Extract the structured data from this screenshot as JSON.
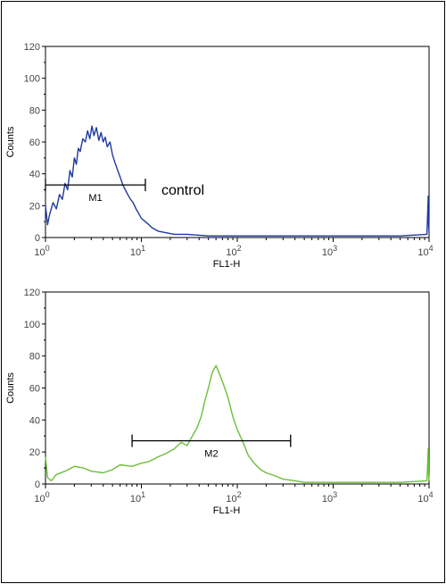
{
  "chart_data": [
    {
      "type": "line",
      "xscale": "log",
      "xlim": [
        1,
        10000
      ],
      "ylim": [
        0,
        120
      ],
      "yticks": [
        0,
        20,
        40,
        60,
        80,
        100,
        120
      ],
      "xlabel": "FL1-H",
      "ylabel": "Counts",
      "annotation": "control",
      "color": "#1e3a9e",
      "marker": {
        "label": "M1",
        "x1": 1,
        "x2": 11,
        "y": 33
      },
      "series": [
        {
          "x": [
            1,
            1.05,
            1.1,
            1.2,
            1.3,
            1.4,
            1.5,
            1.6,
            1.7,
            1.8,
            1.9,
            2.0,
            2.1,
            2.2,
            2.3,
            2.45,
            2.6,
            2.75,
            2.9,
            3.05,
            3.2,
            3.4,
            3.6,
            3.8,
            4.0,
            4.2,
            4.4,
            4.7,
            5.0,
            5.3,
            5.6,
            6.0,
            6.4,
            6.8,
            7.2,
            7.7,
            8.2,
            8.8,
            9.4,
            10,
            11,
            12,
            13,
            15,
            18,
            22,
            30,
            50,
            100,
            200,
            500,
            1000,
            2000,
            5000,
            9500,
            9800,
            9900,
            10000
          ],
          "y": [
            20,
            8,
            14,
            22,
            18,
            27,
            24,
            34,
            30,
            42,
            38,
            50,
            46,
            56,
            54,
            62,
            60,
            67,
            62,
            70,
            64,
            69,
            61,
            66,
            60,
            63,
            57,
            60,
            52,
            47,
            43,
            38,
            33,
            30,
            27,
            24,
            22,
            18,
            15,
            12,
            10,
            8,
            6,
            4,
            3,
            2,
            2,
            1,
            1,
            1,
            1,
            1,
            1,
            1,
            2,
            26,
            8,
            3
          ]
        }
      ]
    },
    {
      "type": "line",
      "xscale": "log",
      "xlim": [
        1,
        10000
      ],
      "ylim": [
        0,
        120
      ],
      "yticks": [
        0,
        20,
        40,
        60,
        80,
        100,
        120
      ],
      "xlabel": "FL1-H",
      "ylabel": "Counts",
      "color": "#6bbf3a",
      "marker": {
        "label": "M2",
        "x1": 8,
        "x2": 360,
        "y": 27
      },
      "series": [
        {
          "x": [
            1,
            1.05,
            1.15,
            1.3,
            1.6,
            2,
            2.5,
            3,
            4,
            5,
            6,
            8,
            10,
            12,
            15,
            18,
            22,
            26,
            30,
            34,
            38,
            42,
            46,
            50,
            55,
            60,
            66,
            72,
            80,
            90,
            100,
            115,
            130,
            150,
            175,
            200,
            250,
            300,
            400,
            500,
            700,
            1000,
            2000,
            5000,
            9500,
            9800,
            9900,
            10000
          ],
          "y": [
            17,
            4,
            2,
            6,
            8,
            11,
            10,
            8,
            7,
            9,
            12,
            11,
            13,
            14,
            17,
            19,
            22,
            26,
            24,
            30,
            35,
            42,
            52,
            60,
            70,
            74,
            68,
            62,
            54,
            42,
            34,
            26,
            18,
            13,
            9,
            7,
            5,
            3,
            2,
            1,
            1,
            1,
            1,
            1,
            2,
            22,
            6,
            2
          ]
        }
      ]
    }
  ]
}
